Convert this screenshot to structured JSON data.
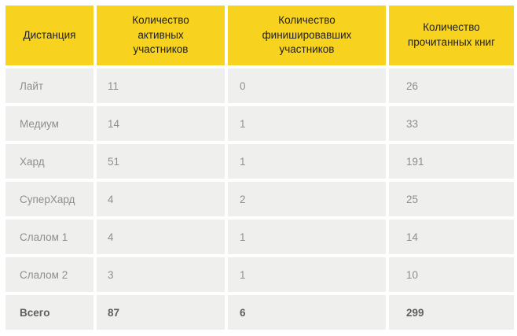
{
  "colors": {
    "header_bg": "#f7d21e",
    "row_bg": "#efefee",
    "header_text": "#222222",
    "row_text": "#8f8f8f",
    "total_text": "#5f5f5f",
    "page_bg": "#ffffff"
  },
  "table": {
    "headers": [
      {
        "label": "Дистанция"
      },
      {
        "label": "Количество\nактивных\nучастников"
      },
      {
        "label": "Количество\nфинишировавших\nучастников"
      },
      {
        "label": "Количество\nпрочитанных книг"
      }
    ],
    "rows": [
      {
        "cells": [
          "Лайт",
          "11",
          "0",
          "26"
        ]
      },
      {
        "cells": [
          "Медиум",
          "14",
          "1",
          "33"
        ]
      },
      {
        "cells": [
          "Хард",
          "51",
          "1",
          "191"
        ]
      },
      {
        "cells": [
          "СуперХард",
          "4",
          "2",
          "25"
        ]
      },
      {
        "cells": [
          "Слалом 1",
          "4",
          "1",
          "14"
        ]
      },
      {
        "cells": [
          "Слалом 2",
          "3",
          "1",
          "10"
        ]
      }
    ],
    "total": {
      "cells": [
        "Всего",
        "87",
        "6",
        "299"
      ]
    }
  }
}
